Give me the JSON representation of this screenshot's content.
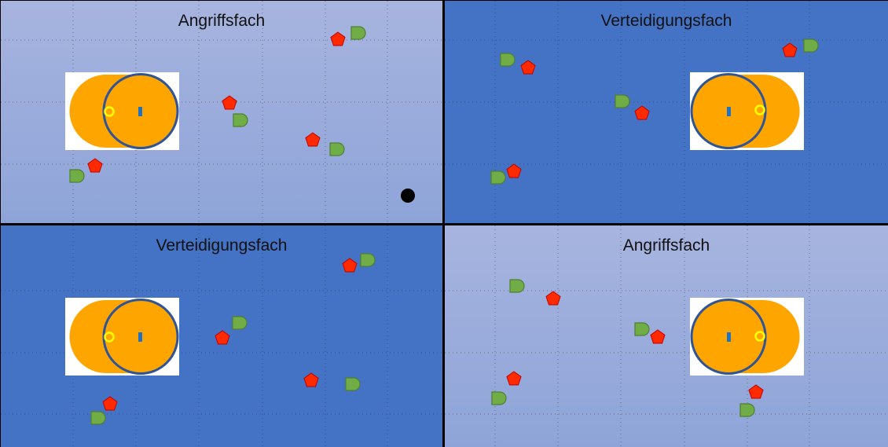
{
  "colors": {
    "light_panel": "#a7b4df",
    "dark_panel": "#4472c4",
    "field_orange": "#ffa500",
    "circle_stroke": "#2f5597",
    "center_mark": "#1f72c4",
    "spot_yellow": "#ffff00",
    "player_red": "#ff2a00",
    "player_red_stroke": "#c00000",
    "player_green": "#70ad47",
    "player_green_stroke": "#507e32",
    "ball": "#000000"
  },
  "icons": {
    "red_player": "red-pentagon-icon",
    "green_player": "green-d-shape-icon",
    "ball": "black-ball-icon"
  },
  "quadrants": [
    {
      "id": "top-left",
      "title": "Angriffsfach",
      "theme": "light"
    },
    {
      "id": "top-right",
      "title": "Verteidigungsfach",
      "theme": "dark"
    },
    {
      "id": "bottom-left",
      "title": "Verteidigungsfach",
      "theme": "dark"
    },
    {
      "id": "bottom-right",
      "title": "Angriffsfach",
      "theme": "light"
    }
  ]
}
